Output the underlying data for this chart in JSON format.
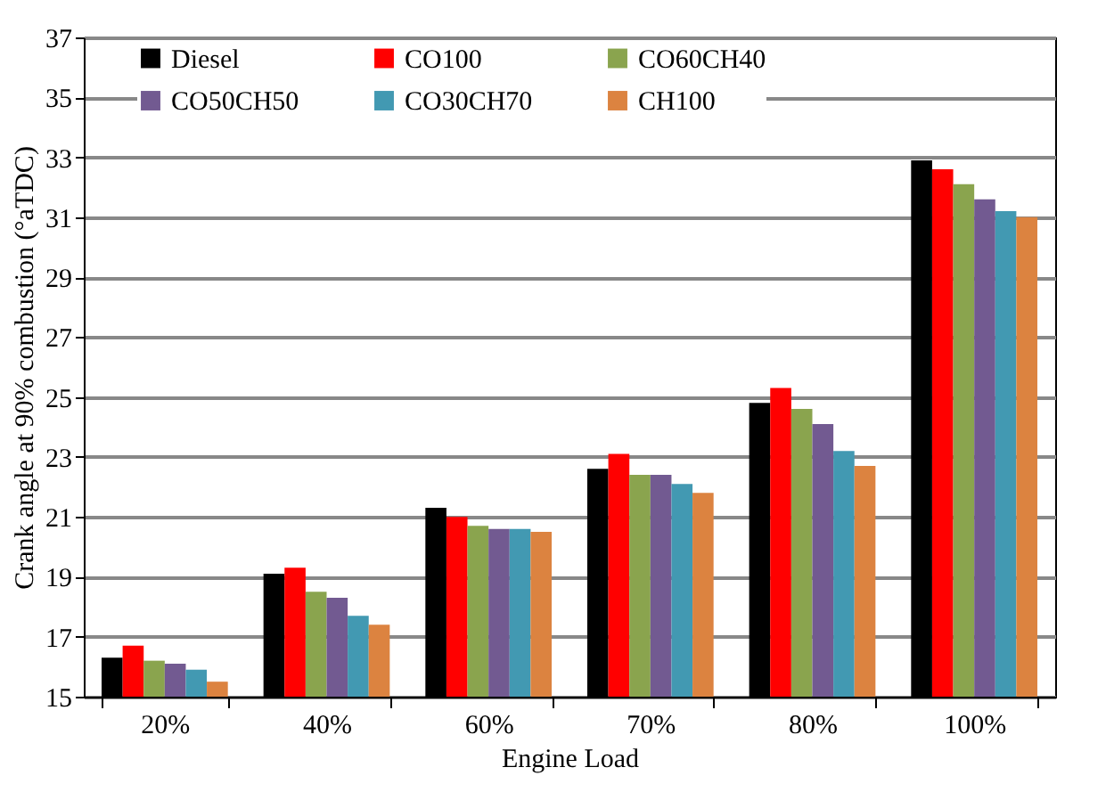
{
  "chart_data": {
    "type": "bar",
    "xlabel": "Engine Load",
    "ylabel": "Crank angle at 90% combustion (°aTDC)",
    "categories": [
      "20%",
      "40%",
      "60%",
      "70%",
      "80%",
      "100%"
    ],
    "series": [
      {
        "name": "Diesel",
        "color": "#000000",
        "values": [
          16.3,
          19.1,
          21.3,
          22.6,
          24.8,
          32.9
        ]
      },
      {
        "name": "CO100",
        "color": "#ff0000",
        "values": [
          16.7,
          19.3,
          21.0,
          23.1,
          25.3,
          32.6
        ]
      },
      {
        "name": "CO60CH40",
        "color": "#8aa44e",
        "values": [
          16.2,
          18.5,
          20.7,
          22.4,
          24.6,
          32.1
        ]
      },
      {
        "name": "CO50CH50",
        "color": "#725a91",
        "values": [
          16.1,
          18.3,
          20.6,
          22.4,
          24.1,
          31.6
        ]
      },
      {
        "name": "CO30CH70",
        "color": "#4299b2",
        "values": [
          15.9,
          17.7,
          20.6,
          22.1,
          23.2,
          31.2
        ]
      },
      {
        "name": "CH100",
        "color": "#dc8340",
        "values": [
          15.5,
          17.4,
          20.5,
          21.8,
          22.7,
          31.0
        ]
      }
    ],
    "ylim": [
      15,
      37
    ],
    "yticks": [
      15,
      17,
      19,
      21,
      23,
      25,
      27,
      29,
      31,
      33,
      35,
      37
    ],
    "grid": "y",
    "legend": "top"
  }
}
